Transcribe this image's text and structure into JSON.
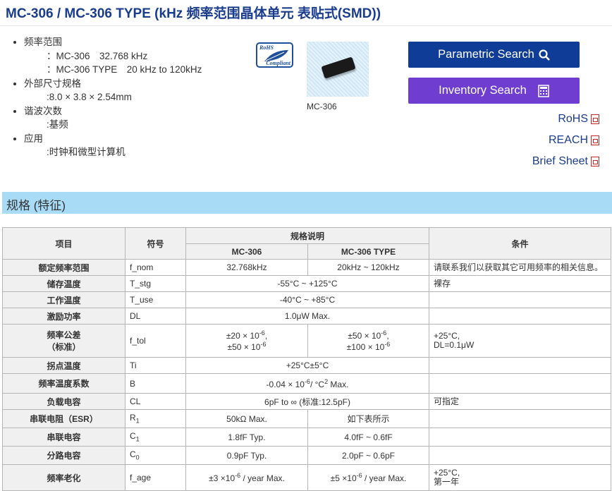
{
  "title": "MC-306 / MC-306 TYPE (kHz 频率范围晶体单元 表贴式(SMD))",
  "features": [
    {
      "label": "频率范围",
      "values": [
        "：MC-306　32.768 kHz",
        "：MC-306 TYPE　20 kHz to 120kHz"
      ]
    },
    {
      "label": "外部尺寸规格",
      "values": [
        ":8.0 × 3.8 × 2.54mm"
      ]
    },
    {
      "label": "谐波次数",
      "values": [
        ":基频"
      ]
    },
    {
      "label": "应用",
      "values": [
        ":时钟和微型计算机"
      ]
    }
  ],
  "rohs_logo": {
    "text1": "RoHS",
    "text2": "Compliant"
  },
  "product_caption": "MC-306",
  "buttons": {
    "parametric": "Parametric Search",
    "inventory": "Inventory Search"
  },
  "docs": [
    "RoHS",
    "REACH",
    "Brief Sheet"
  ],
  "section_title": "规格 (特征)",
  "table": {
    "headers": {
      "item": "项目",
      "symbol": "符号",
      "spec": "规格说明",
      "cond": "条件",
      "col1": "MC-306",
      "col2": "MC-306 TYPE"
    },
    "rows": [
      {
        "item": "额定频率范围",
        "sym": [
          {
            "t": "f_nom"
          }
        ],
        "v1": [
          [
            {
              "t": "32.768kHz"
            }
          ]
        ],
        "v2": [
          [
            {
              "t": "20kHz ~ 120kHz"
            }
          ]
        ],
        "cond": [
          "请联系我们以获取其它可用频率的相关信息。"
        ]
      },
      {
        "item": "储存温度",
        "sym": [
          {
            "t": "T_stg"
          }
        ],
        "v": [
          [
            {
              "t": "-55°C ~ +125°C"
            }
          ]
        ],
        "cond": [
          "裸存"
        ]
      },
      {
        "item": "工作温度",
        "sym": [
          {
            "t": "T_use"
          }
        ],
        "v": [
          [
            {
              "t": "-40°C ~ +85°C"
            }
          ]
        ],
        "cond": []
      },
      {
        "item": "激励功率",
        "sym": [
          {
            "t": "DL"
          }
        ],
        "v": [
          [
            {
              "t": "1.0μW Max."
            }
          ]
        ],
        "cond": []
      },
      {
        "item": "频率公差\n（标准）",
        "sym": [
          {
            "t": "f_tol"
          }
        ],
        "v1": [
          [
            {
              "t": "±20 × 10"
            },
            {
              "sup": "-6"
            },
            {
              "t": ","
            }
          ],
          [
            {
              "t": "±50 × 10"
            },
            {
              "sup": "-6"
            }
          ]
        ],
        "v2": [
          [
            {
              "t": "±50 × 10"
            },
            {
              "sup": "-6"
            },
            {
              "t": ","
            }
          ],
          [
            {
              "t": "±100 × 10"
            },
            {
              "sup": "-6"
            }
          ]
        ],
        "cond": [
          "+25°C,",
          "DL=0.1μW"
        ]
      },
      {
        "item": "拐点温度",
        "sym": [
          {
            "t": "Ti"
          }
        ],
        "v": [
          [
            {
              "t": "+25°C±5°C"
            }
          ]
        ],
        "cond": []
      },
      {
        "item": "频率温度系数",
        "sym": [
          {
            "t": "B"
          }
        ],
        "v": [
          [
            {
              "t": "-0.04 × 10"
            },
            {
              "sup": "-6"
            },
            {
              "t": "/ °C"
            },
            {
              "sup": "2"
            },
            {
              "t": " Max."
            }
          ]
        ],
        "cond": []
      },
      {
        "item": "负载电容",
        "sym": [
          {
            "t": "CL"
          }
        ],
        "v": [
          [
            {
              "t": "6pF to ∞ (标准:12.5pF)"
            }
          ]
        ],
        "cond": [
          "可指定"
        ]
      },
      {
        "item": "串联电阻（ESR）",
        "sym": [
          {
            "t": "R"
          },
          {
            "sub": "1"
          }
        ],
        "v1": [
          [
            {
              "t": "50kΩ Max."
            }
          ]
        ],
        "v2": [
          [
            {
              "t": "如下表所示"
            }
          ]
        ],
        "cond": []
      },
      {
        "item": "串联电容",
        "sym": [
          {
            "t": "C"
          },
          {
            "sub": "1"
          }
        ],
        "v1": [
          [
            {
              "t": "1.8fF Typ."
            }
          ]
        ],
        "v2": [
          [
            {
              "t": "4.0fF ~ 0.6fF"
            }
          ]
        ],
        "cond": []
      },
      {
        "item": "分路电容",
        "sym": [
          {
            "t": "C"
          },
          {
            "sub": "0"
          }
        ],
        "v1": [
          [
            {
              "t": "0.9pF Typ."
            }
          ]
        ],
        "v2": [
          [
            {
              "t": "2.0pF ~ 0.6pF"
            }
          ]
        ],
        "cond": []
      },
      {
        "item": "频率老化",
        "sym": [
          {
            "t": "f_age"
          }
        ],
        "v1": [
          [
            {
              "t": "±3 ×10"
            },
            {
              "sup": "-6"
            },
            {
              "t": " / year Max."
            }
          ]
        ],
        "v2": [
          [
            {
              "t": "±5 ×10"
            },
            {
              "sup": "-6"
            },
            {
              "t": " / year Max."
            }
          ]
        ],
        "cond": [
          "+25°C,",
          "第一年"
        ]
      }
    ]
  },
  "colors": {
    "title": "#1a3c8c",
    "parametric_button": "#0f3c96",
    "inventory_button": "#6f3ed1",
    "section_bar": "#a8dcf6",
    "pdf_icon": "#c62828"
  }
}
